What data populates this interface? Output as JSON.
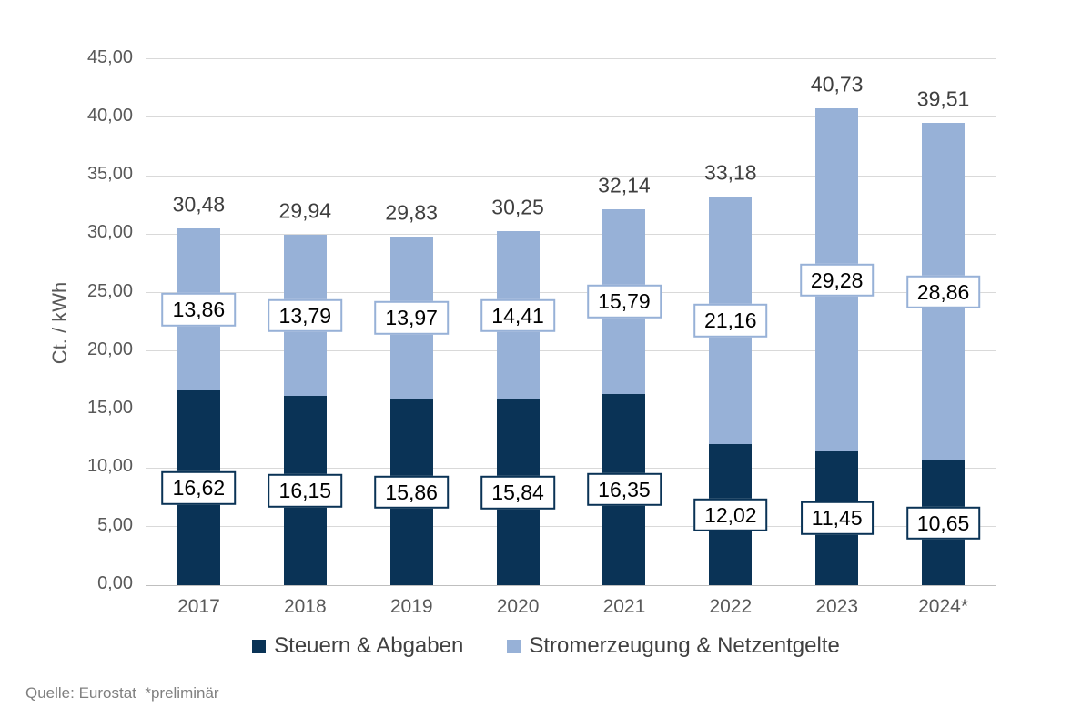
{
  "source_note": "Quelle: Eurostat  *preliminär",
  "background_color": "#ffffff",
  "chart_data": {
    "type": "bar",
    "stacked": true,
    "title": "",
    "xlabel": "",
    "ylabel": "Ct. / kWh",
    "ylim": [
      0,
      45
    ],
    "ytick_step": 5,
    "ytick_labels": [
      "0,00",
      "5,00",
      "10,00",
      "15,00",
      "20,00",
      "25,00",
      "30,00",
      "35,00",
      "40,00",
      "45,00"
    ],
    "grid": true,
    "legend_position": "bottom",
    "categories": [
      "2017",
      "2018",
      "2019",
      "2020",
      "2021",
      "2022",
      "2023",
      "2024*"
    ],
    "series": [
      {
        "name": "Steuern & Abgaben",
        "color": "#0a3356",
        "values": [
          16.62,
          16.15,
          15.86,
          15.84,
          16.35,
          12.02,
          11.45,
          10.65
        ],
        "labels": [
          "16,62",
          "16,15",
          "15,86",
          "15,84",
          "16,35",
          "12,02",
          "11,45",
          "10,65"
        ],
        "label_box_border": "#0a3356"
      },
      {
        "name": "Stromerzeugung & Netzentgelte",
        "color": "#97b1d7",
        "values": [
          13.86,
          13.79,
          13.97,
          14.41,
          15.79,
          21.16,
          29.28,
          28.86
        ],
        "labels": [
          "13,86",
          "13,79",
          "13,97",
          "14,41",
          "15,79",
          "21,16",
          "29,28",
          "28,86"
        ],
        "label_box_border": "#97b1d7"
      }
    ],
    "totals": [
      30.48,
      29.94,
      29.83,
      30.25,
      32.14,
      33.18,
      40.73,
      39.51
    ],
    "total_labels": [
      "30,48",
      "29,94",
      "29,83",
      "30,25",
      "32,14",
      "33,18",
      "40,73",
      "39,51"
    ]
  }
}
